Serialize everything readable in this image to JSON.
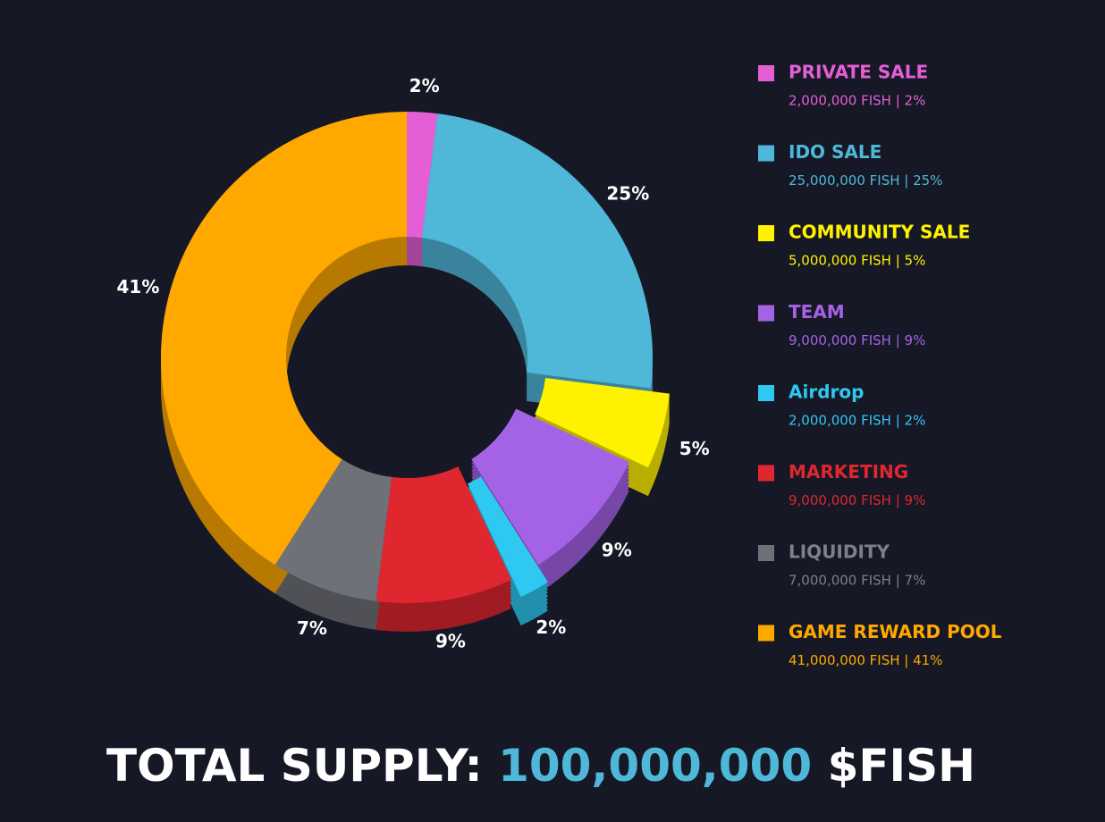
{
  "chart_data": {
    "type": "pie",
    "categories": [
      "PRIVATE SALE",
      "IDO SALE",
      "COMMUNITY SALE",
      "TEAM",
      "Airdrop",
      "MARKETING",
      "LIQUIDITY",
      "GAME REWARD POOL"
    ],
    "values": [
      2,
      25,
      5,
      9,
      2,
      9,
      7,
      41
    ],
    "value_labels": [
      "2%",
      "25%",
      "5%",
      "9%",
      "2%",
      "9%",
      "7%",
      "41%"
    ],
    "legend_details": [
      "2,000,000 FISH | 2%",
      "25,000,000 FISH | 25%",
      "5,000,000 FISH | 5%",
      "9,000,000 FISH | 9%",
      "2,000,000 FISH | 2%",
      "9,000,000 FISH | 9%",
      "7,000,000 FISH | 7%",
      "41,000,000 FISH | 41%"
    ],
    "colors": [
      "#e45fd6",
      "#4fb8d9",
      "#fff200",
      "#a463e6",
      "#2ec8f0",
      "#e0262f",
      "#6f7179",
      "#ffa800"
    ],
    "exploded": [
      false,
      false,
      true,
      false,
      true,
      false,
      false,
      false
    ],
    "footer": {
      "label": "TOTAL SUPPLY:",
      "amount": "100,000,000",
      "unit": "$FISH"
    }
  }
}
